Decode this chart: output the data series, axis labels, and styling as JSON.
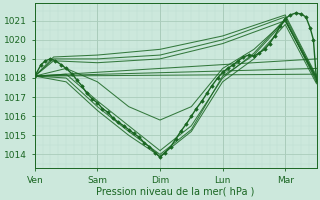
{
  "xlabel": "Pression niveau de la mer( hPa )",
  "bg_color": "#cce8dc",
  "grid_color_major": "#aaccbb",
  "grid_color_minor": "#bbddd0",
  "line_color": "#1a6622",
  "ylim": [
    1013.3,
    1021.9
  ],
  "yticks": [
    1014,
    1015,
    1016,
    1017,
    1018,
    1019,
    1020,
    1021
  ],
  "xlim": [
    0,
    4.5
  ],
  "xtick_labels": [
    "Ven",
    "Sam",
    "Dim",
    "Lun",
    "Mar"
  ],
  "xtick_pos": [
    0.0,
    1.0,
    2.0,
    3.0,
    4.0
  ],
  "ensemble_lines": [
    [
      [
        0.0,
        1018.1
      ],
      [
        4.5,
        1019.0
      ]
    ],
    [
      [
        0.0,
        1018.1
      ],
      [
        4.5,
        1018.5
      ]
    ],
    [
      [
        0.0,
        1018.1
      ],
      [
        4.5,
        1018.2
      ]
    ],
    [
      [
        0.0,
        1018.1
      ],
      [
        0.3,
        1019.1
      ],
      [
        1.0,
        1019.2
      ],
      [
        2.0,
        1019.5
      ],
      [
        3.0,
        1020.2
      ],
      [
        4.0,
        1021.3
      ],
      [
        4.5,
        1018.1
      ]
    ],
    [
      [
        0.0,
        1018.1
      ],
      [
        0.3,
        1019.0
      ],
      [
        1.0,
        1019.0
      ],
      [
        2.0,
        1019.2
      ],
      [
        3.0,
        1020.0
      ],
      [
        4.0,
        1021.2
      ],
      [
        4.5,
        1018.0
      ]
    ],
    [
      [
        0.0,
        1018.1
      ],
      [
        0.3,
        1018.9
      ],
      [
        1.0,
        1018.8
      ],
      [
        2.0,
        1019.0
      ],
      [
        3.0,
        1019.8
      ],
      [
        4.0,
        1021.0
      ],
      [
        4.5,
        1018.0
      ]
    ],
    [
      [
        0.0,
        1018.1
      ],
      [
        0.5,
        1018.5
      ],
      [
        1.0,
        1017.8
      ],
      [
        1.5,
        1016.5
      ],
      [
        2.0,
        1015.8
      ],
      [
        2.5,
        1016.5
      ],
      [
        3.0,
        1018.5
      ],
      [
        3.5,
        1019.5
      ],
      [
        4.0,
        1021.0
      ],
      [
        4.5,
        1018.0
      ]
    ],
    [
      [
        0.0,
        1018.1
      ],
      [
        0.5,
        1018.2
      ],
      [
        1.0,
        1016.8
      ],
      [
        1.5,
        1015.5
      ],
      [
        2.0,
        1014.2
      ],
      [
        2.5,
        1015.5
      ],
      [
        3.0,
        1018.0
      ],
      [
        3.5,
        1019.3
      ],
      [
        4.0,
        1021.1
      ],
      [
        4.5,
        1017.8
      ]
    ],
    [
      [
        0.0,
        1018.1
      ],
      [
        0.5,
        1018.0
      ],
      [
        1.0,
        1016.5
      ],
      [
        1.5,
        1015.2
      ],
      [
        2.0,
        1014.0
      ],
      [
        2.5,
        1015.3
      ],
      [
        3.0,
        1018.1
      ],
      [
        3.5,
        1019.2
      ],
      [
        4.0,
        1021.0
      ],
      [
        4.5,
        1017.9
      ]
    ],
    [
      [
        0.0,
        1018.1
      ],
      [
        0.5,
        1017.8
      ],
      [
        1.0,
        1016.3
      ],
      [
        1.5,
        1015.0
      ],
      [
        2.0,
        1013.9
      ],
      [
        2.5,
        1015.2
      ],
      [
        3.0,
        1017.8
      ],
      [
        3.5,
        1019.0
      ],
      [
        4.0,
        1020.8
      ],
      [
        4.5,
        1017.7
      ]
    ]
  ],
  "main_line": [
    [
      0.0,
      1018.1
    ],
    [
      0.1,
      1018.7
    ],
    [
      0.17,
      1018.9
    ],
    [
      0.25,
      1019.0
    ],
    [
      0.33,
      1018.9
    ],
    [
      0.42,
      1018.7
    ],
    [
      0.5,
      1018.5
    ],
    [
      0.6,
      1018.2
    ],
    [
      0.67,
      1017.9
    ],
    [
      0.75,
      1017.6
    ],
    [
      0.83,
      1017.2
    ],
    [
      0.92,
      1016.9
    ],
    [
      1.0,
      1016.7
    ],
    [
      1.08,
      1016.4
    ],
    [
      1.17,
      1016.2
    ],
    [
      1.25,
      1015.9
    ],
    [
      1.33,
      1015.7
    ],
    [
      1.42,
      1015.5
    ],
    [
      1.5,
      1015.3
    ],
    [
      1.58,
      1015.1
    ],
    [
      1.67,
      1014.9
    ],
    [
      1.75,
      1014.6
    ],
    [
      1.83,
      1014.4
    ],
    [
      1.92,
      1014.1
    ],
    [
      2.0,
      1013.85
    ],
    [
      2.08,
      1014.1
    ],
    [
      2.17,
      1014.4
    ],
    [
      2.25,
      1014.8
    ],
    [
      2.33,
      1015.2
    ],
    [
      2.42,
      1015.6
    ],
    [
      2.5,
      1016.0
    ],
    [
      2.58,
      1016.4
    ],
    [
      2.67,
      1016.8
    ],
    [
      2.75,
      1017.2
    ],
    [
      2.83,
      1017.6
    ],
    [
      2.92,
      1018.0
    ],
    [
      3.0,
      1018.3
    ],
    [
      3.08,
      1018.5
    ],
    [
      3.17,
      1018.7
    ],
    [
      3.25,
      1018.9
    ],
    [
      3.33,
      1019.1
    ],
    [
      3.42,
      1019.2
    ],
    [
      3.5,
      1019.15
    ],
    [
      3.58,
      1019.3
    ],
    [
      3.67,
      1019.5
    ],
    [
      3.75,
      1019.8
    ],
    [
      3.83,
      1020.2
    ],
    [
      3.92,
      1020.7
    ],
    [
      4.0,
      1021.1
    ],
    [
      4.08,
      1021.3
    ],
    [
      4.17,
      1021.4
    ],
    [
      4.25,
      1021.35
    ],
    [
      4.33,
      1021.2
    ],
    [
      4.4,
      1020.6
    ],
    [
      4.45,
      1020.0
    ],
    [
      4.5,
      1017.85
    ]
  ]
}
